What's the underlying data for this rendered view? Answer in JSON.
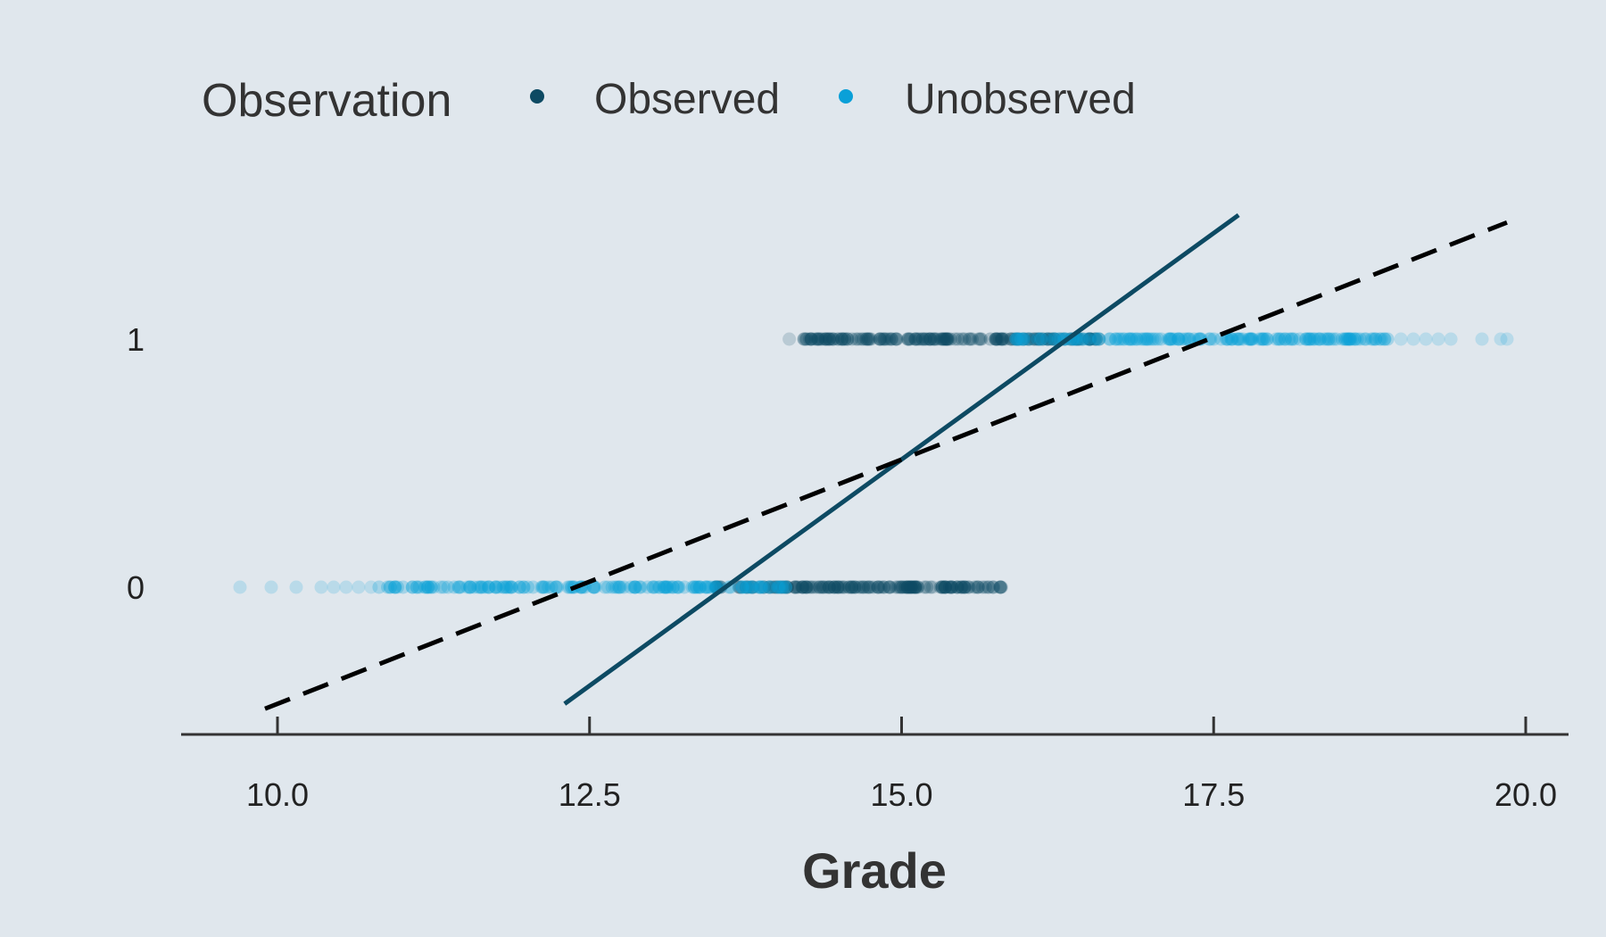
{
  "chart_data": {
    "type": "scatter",
    "xlabel": "Grade",
    "ylabel": "",
    "xlim": [
      9.25,
      20.35
    ],
    "ylim": [
      -0.6,
      1.75
    ],
    "x_ticks": [
      "10.0",
      "12.5",
      "15.0",
      "17.5",
      "20.0"
    ],
    "x_tick_values": [
      10.0,
      12.5,
      15.0,
      17.5,
      20.0
    ],
    "y_ticks": [
      "0",
      "1"
    ],
    "y_tick_values": [
      0,
      1
    ],
    "grid": false,
    "legend": {
      "title": "Observation",
      "position": "top",
      "entries": [
        {
          "label": "Observed",
          "color": "#0d4a63"
        },
        {
          "label": "Unobserved",
          "color": "#0aa0d8"
        }
      ]
    },
    "series": [
      {
        "name": "Observed",
        "color": "#0d4a63",
        "y": 0,
        "x_range": [
          13.5,
          15.8
        ],
        "x_sparse": [
          15.1,
          15.25,
          15.4,
          15.5,
          15.6,
          15.7,
          15.8
        ]
      },
      {
        "name": "Unobserved",
        "color": "#0aa0d8",
        "y": 0,
        "x_range": [
          10.8,
          14.1
        ],
        "x_sparse": [
          9.7,
          9.95,
          10.15,
          10.35,
          10.45,
          10.55,
          10.65,
          10.75
        ]
      },
      {
        "name": "Observed",
        "color": "#0d4a63",
        "y": 1,
        "x_range": [
          14.2,
          16.6
        ],
        "x_sparse": [
          14.1,
          14.22,
          14.32,
          14.42
        ]
      },
      {
        "name": "Unobserved",
        "color": "#0aa0d8",
        "y": 1,
        "x_range": [
          15.9,
          18.9
        ],
        "x_sparse": [
          19.0,
          19.1,
          19.2,
          19.3,
          19.4,
          19.65,
          19.8,
          19.85
        ]
      }
    ],
    "lines": [
      {
        "style": "solid",
        "color": "#0d4a63",
        "x": [
          12.3,
          17.7
        ],
        "y": [
          -0.47,
          1.5
        ]
      },
      {
        "style": "dashed",
        "color": "#000000",
        "x": [
          9.9,
          19.85
        ],
        "y": [
          -0.49,
          1.47
        ]
      }
    ]
  }
}
